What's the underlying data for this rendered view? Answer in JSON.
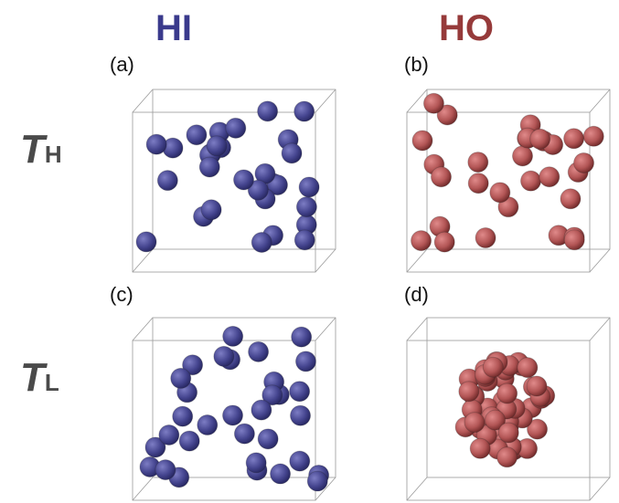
{
  "columns": [
    "HI",
    "HO"
  ],
  "rows": [
    {
      "symbol": "T",
      "subscript": "H"
    },
    {
      "symbol": "T",
      "subscript": "L"
    }
  ],
  "panels": [
    "(a)",
    "(b)",
    "(c)",
    "(d)"
  ]
}
